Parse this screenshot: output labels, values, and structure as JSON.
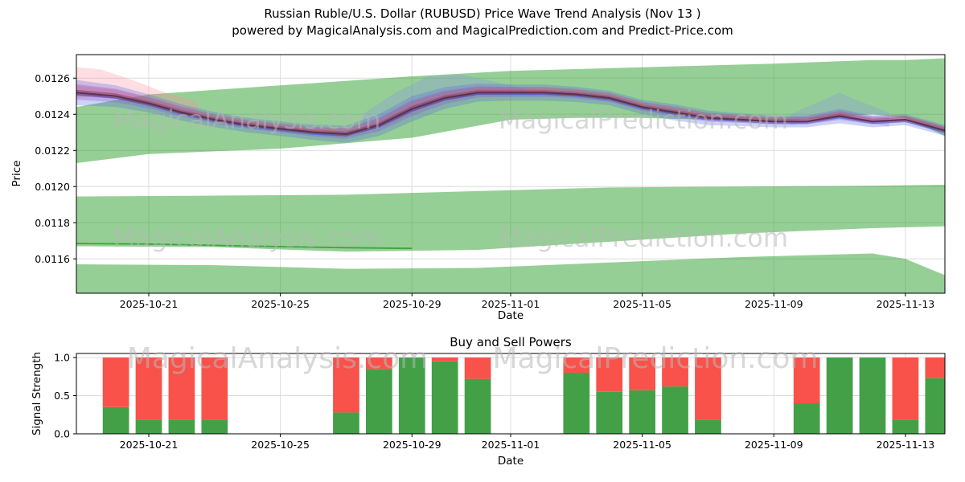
{
  "page": {
    "title_line1": "Russian Ruble/U.S. Dollar (RUBUSD) Price Wave Trend Analysis (Nov 13 )",
    "title_line2": "powered by MagicalAnalysis.com and MagicalPrediction.com and Predict-Price.com"
  },
  "watermarks": {
    "text_left": "MagicalAnalysis.com",
    "text_right": "MagicalPrediction.com",
    "color": "#b8b8b8",
    "opacity": 0.55
  },
  "chart_data": [
    {
      "type": "area",
      "name": "price-wave-trend",
      "xlabel": "Date",
      "ylabel": "Price",
      "x_domain_days": [
        -0.2,
        26.2
      ],
      "ylim": [
        0.01141,
        0.01273
      ],
      "grid": true,
      "yticks": [
        0.0116,
        0.0118,
        0.012,
        0.0122,
        0.0124,
        0.0126
      ],
      "ytick_labels": [
        "0.0116",
        "0.0118",
        "0.0120",
        "0.0122",
        "0.0124",
        "0.0126"
      ],
      "xticks": [
        {
          "day": 2,
          "label": "2025-10-21"
        },
        {
          "day": 6,
          "label": "2025-10-25"
        },
        {
          "day": 10,
          "label": "2025-10-29"
        },
        {
          "day": 13,
          "label": "2025-11-01"
        },
        {
          "day": 17,
          "label": "2025-11-05"
        },
        {
          "day": 21,
          "label": "2025-11-09"
        },
        {
          "day": 25,
          "label": "2025-11-13"
        }
      ],
      "bands": [
        {
          "name": "upper-forecast-band",
          "color": "#2ca02c",
          "opacity": 0.5,
          "x": [
            -0.2,
            2,
            6,
            10,
            13,
            15,
            17,
            21,
            24,
            25,
            26.2
          ],
          "upper": [
            0.01244,
            0.01251,
            0.01256,
            0.01261,
            0.01264,
            0.01265,
            0.01266,
            0.01268,
            0.0127,
            0.0127,
            0.01271
          ],
          "lower": [
            0.01213,
            0.01218,
            0.01221,
            0.01227,
            0.01237,
            0.01238,
            0.01238,
            0.01236,
            0.0124,
            0.01238,
            0.01228
          ]
        },
        {
          "name": "middle-forecast-band",
          "color": "#2ca02c",
          "opacity": 0.5,
          "x": [
            -0.2,
            4,
            8,
            12,
            16,
            20,
            24,
            26.2
          ],
          "upper": [
            0.011945,
            0.01195,
            0.011955,
            0.011975,
            0.011995,
            0.012,
            0.012005,
            0.01201
          ],
          "lower": [
            0.01167,
            0.011665,
            0.01164,
            0.01165,
            0.011695,
            0.01174,
            0.01177,
            0.01178
          ]
        },
        {
          "name": "lower-forecast-band",
          "color": "#2ca02c",
          "opacity": 0.5,
          "x": [
            -0.2,
            4,
            8,
            12,
            16,
            20,
            24,
            25,
            26.2
          ],
          "upper": [
            0.01157,
            0.011565,
            0.011545,
            0.01155,
            0.01158,
            0.01161,
            0.01163,
            0.0116,
            0.01151
          ],
          "lower": [
            0.01135,
            0.01135,
            0.01135,
            0.01135,
            0.01135,
            0.01135,
            0.01135,
            0.01135,
            0.01135
          ]
        },
        {
          "name": "pink-start-halo",
          "color": "#ff8fa0",
          "opacity": 0.3,
          "x": [
            -0.2,
            0.5,
            1.5,
            2.5,
            3.5
          ],
          "upper": [
            0.01266,
            0.01265,
            0.01259,
            0.01252,
            0.01247
          ],
          "lower": [
            0.01249,
            0.0125,
            0.01247,
            0.01244,
            0.0124
          ]
        },
        {
          "name": "blue-rally-halo",
          "color": "#8892ea",
          "opacity": 0.3,
          "x": [
            8.5,
            9.5,
            10.5,
            11.5,
            12.5,
            13.5
          ],
          "upper": [
            0.0124,
            0.01252,
            0.01261,
            0.01262,
            0.01258,
            0.01254
          ],
          "lower": [
            0.0123,
            0.01236,
            0.01246,
            0.01252,
            0.01252,
            0.01251
          ]
        },
        {
          "name": "blue-right-halo",
          "color": "#8892ea",
          "opacity": 0.28,
          "x": [
            21.5,
            22.5,
            23,
            23.5,
            24.5
          ],
          "upper": [
            0.0124,
            0.01248,
            0.01252,
            0.01248,
            0.01241
          ],
          "lower": [
            0.01234,
            0.01237,
            0.0124,
            0.01237,
            0.01233
          ]
        }
      ],
      "green_line": {
        "name": "support-line",
        "color": "#2ca02c",
        "opacity": 0.85,
        "width": 1.8,
        "x": [
          -0.2,
          2,
          4,
          6,
          8,
          10
        ],
        "y": [
          0.011685,
          0.011682,
          0.011675,
          0.011668,
          0.011662,
          0.011658
        ]
      },
      "wave": {
        "x": [
          -0.2,
          1,
          2,
          3,
          4,
          5,
          6,
          7,
          8,
          9,
          10,
          11,
          12,
          13,
          14,
          15,
          16,
          17,
          18,
          19,
          20,
          21,
          22,
          23,
          24,
          25,
          26.2
        ],
        "center": [
          0.01252,
          0.0125,
          0.01246,
          0.01241,
          0.01237,
          0.01234,
          0.01232,
          0.0123,
          0.01229,
          0.01234,
          0.01243,
          0.01249,
          0.01252,
          0.01252,
          0.01252,
          0.01251,
          0.01249,
          0.01244,
          0.01241,
          0.01238,
          0.01237,
          0.01236,
          0.01236,
          0.01239,
          0.01236,
          0.01237,
          0.01231
        ],
        "halfwidth": [
          7e-05,
          6e-05,
          5e-05,
          4.5e-05,
          4.2e-05,
          4e-05,
          4e-05,
          4.2e-05,
          4.8e-05,
          6e-05,
          7e-05,
          6e-05,
          5e-05,
          4.5e-05,
          4.5e-05,
          4.2e-05,
          4e-05,
          4e-05,
          4.5e-05,
          4e-05,
          3.5e-05,
          3.2e-05,
          3.2e-05,
          4e-05,
          3.2e-05,
          3e-05,
          3e-05
        ],
        "layers": [
          {
            "name": "blue-envelope",
            "color": "#5b6be0",
            "opacity": 0.3,
            "mult": 1.0,
            "offset": 0
          },
          {
            "name": "purple-envelope",
            "color": "#8a50cc",
            "opacity": 0.3,
            "mult": 0.62,
            "offset": 4e-06
          },
          {
            "name": "red-envelope",
            "color": "#dd5560",
            "opacity": 0.26,
            "mult": 0.42,
            "offset": 1e-05
          },
          {
            "name": "inner-core",
            "color": "#503a78",
            "opacity": 0.35,
            "mult": 0.22,
            "offset": 0
          }
        ],
        "lines": [
          {
            "name": "trend-line-dark",
            "color": "#5a2840",
            "width": 2.2,
            "opacity": 0.85,
            "offset": 0
          },
          {
            "name": "trend-line-blue",
            "color": "#3d47cc",
            "width": 1.4,
            "opacity": 0.5,
            "offset": -1e-05
          },
          {
            "name": "trend-line-red",
            "color": "#c23a4c",
            "width": 1.4,
            "opacity": 0.45,
            "offset": 1.2e-05
          }
        ]
      }
    },
    {
      "type": "bar",
      "name": "buy-sell-powers",
      "title": "Buy and Sell Powers",
      "xlabel": "Date",
      "ylabel": "Signal Strength",
      "ylim": [
        0,
        1.053
      ],
      "grid": true,
      "yticks": [
        0.0,
        0.5,
        1.0
      ],
      "ytick_labels": [
        "0.0",
        "0.5",
        "1.0"
      ],
      "xticks": [
        {
          "day": 2,
          "label": "2025-10-21"
        },
        {
          "day": 6,
          "label": "2025-10-25"
        },
        {
          "day": 10,
          "label": "2025-10-29"
        },
        {
          "day": 13,
          "label": "2025-11-01"
        },
        {
          "day": 17,
          "label": "2025-11-05"
        },
        {
          "day": 21,
          "label": "2025-11-09"
        },
        {
          "day": 25,
          "label": "2025-11-13"
        }
      ],
      "buy_color": "#43a047",
      "sell_color": "#f8524a",
      "bar_width_days": 0.8,
      "bars": [
        {
          "date": "2025-10-20",
          "day": 1,
          "buy": 0.35,
          "sell": 0.65
        },
        {
          "date": "2025-10-21",
          "day": 2,
          "buy": 0.18,
          "sell": 0.82
        },
        {
          "date": "2025-10-22",
          "day": 3,
          "buy": 0.18,
          "sell": 0.82
        },
        {
          "date": "2025-10-23",
          "day": 4,
          "buy": 0.18,
          "sell": 0.82
        },
        {
          "date": "2025-10-27",
          "day": 8,
          "buy": 0.28,
          "sell": 0.72
        },
        {
          "date": "2025-10-28",
          "day": 9,
          "buy": 0.85,
          "sell": 0.15
        },
        {
          "date": "2025-10-29",
          "day": 10,
          "buy": 1.0,
          "sell": 0.0
        },
        {
          "date": "2025-10-30",
          "day": 11,
          "buy": 0.95,
          "sell": 0.05
        },
        {
          "date": "2025-10-31",
          "day": 12,
          "buy": 0.72,
          "sell": 0.28
        },
        {
          "date": "2025-11-03",
          "day": 15,
          "buy": 0.8,
          "sell": 0.2
        },
        {
          "date": "2025-11-04",
          "day": 16,
          "buy": 0.55,
          "sell": 0.45
        },
        {
          "date": "2025-11-05",
          "day": 17,
          "buy": 0.57,
          "sell": 0.43
        },
        {
          "date": "2025-11-06",
          "day": 18,
          "buy": 0.62,
          "sell": 0.38
        },
        {
          "date": "2025-11-07",
          "day": 19,
          "buy": 0.18,
          "sell": 0.82
        },
        {
          "date": "2025-11-10",
          "day": 22,
          "buy": 0.4,
          "sell": 0.6
        },
        {
          "date": "2025-11-11",
          "day": 23,
          "buy": 1.0,
          "sell": 0.0
        },
        {
          "date": "2025-11-12",
          "day": 24,
          "buy": 1.0,
          "sell": 0.0
        },
        {
          "date": "2025-11-13",
          "day": 25,
          "buy": 0.18,
          "sell": 0.82
        },
        {
          "date": "2025-11-14",
          "day": 26,
          "buy": 0.73,
          "sell": 0.27
        }
      ]
    }
  ]
}
